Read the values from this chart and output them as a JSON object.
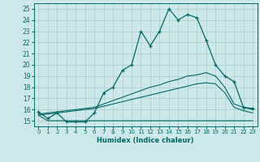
{
  "title": "",
  "xlabel": "Humidex (Indice chaleur)",
  "xlim": [
    -0.5,
    23.5
  ],
  "ylim": [
    14.5,
    25.5
  ],
  "xticks": [
    0,
    1,
    2,
    3,
    4,
    5,
    6,
    7,
    8,
    9,
    10,
    11,
    12,
    13,
    14,
    15,
    16,
    17,
    18,
    19,
    20,
    21,
    22,
    23
  ],
  "yticks": [
    15,
    16,
    17,
    18,
    19,
    20,
    21,
    22,
    23,
    24,
    25
  ],
  "bg_color": "#cce8e8",
  "line_color": "#006868",
  "grid_color": "#aacccc",
  "main_line": [
    15.8,
    15.2,
    15.7,
    14.9,
    14.9,
    14.9,
    15.7,
    17.5,
    18.0,
    19.5,
    20.0,
    23.0,
    21.7,
    23.0,
    25.0,
    24.0,
    24.5,
    24.2,
    22.2,
    20.0,
    19.0,
    18.5,
    16.2,
    16.1
  ],
  "lower_line": [
    15.5,
    15.0,
    15.0,
    15.0,
    15.0,
    15.0,
    15.0,
    15.0,
    15.0,
    15.0,
    15.0,
    15.0,
    15.0,
    15.0,
    15.0,
    15.0,
    15.0,
    15.0,
    15.0,
    15.0,
    15.0,
    15.0,
    15.0,
    15.0
  ],
  "upper_diag": [
    15.6,
    15.7,
    15.8,
    15.9,
    16.0,
    16.1,
    16.2,
    16.5,
    16.8,
    17.1,
    17.4,
    17.7,
    18.0,
    18.2,
    18.5,
    18.7,
    19.0,
    19.1,
    19.3,
    19.0,
    18.0,
    16.5,
    16.2,
    16.0
  ],
  "mid_diag": [
    15.5,
    15.6,
    15.7,
    15.8,
    15.9,
    16.0,
    16.1,
    16.3,
    16.5,
    16.7,
    16.9,
    17.1,
    17.3,
    17.5,
    17.7,
    17.9,
    18.1,
    18.3,
    18.4,
    18.3,
    17.5,
    16.2,
    15.9,
    15.7
  ]
}
